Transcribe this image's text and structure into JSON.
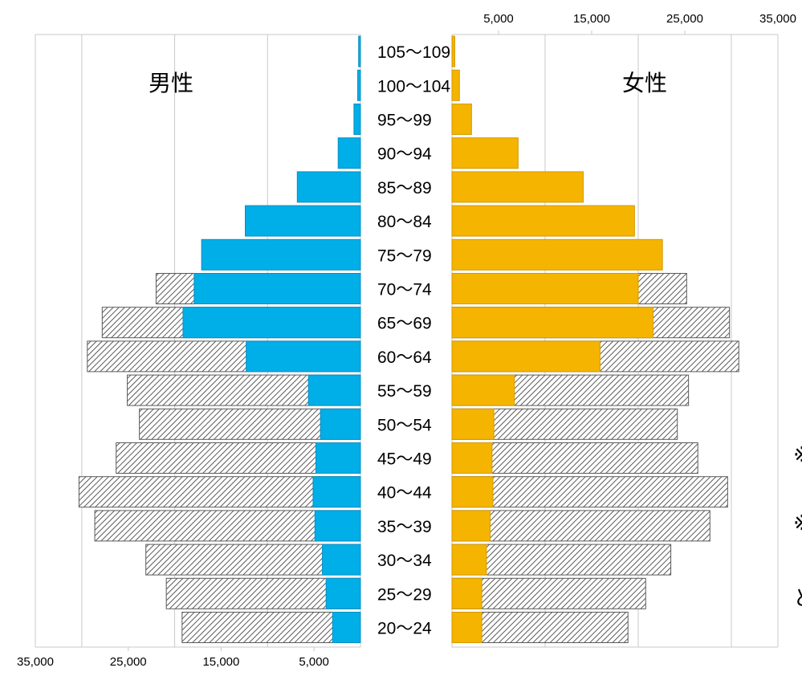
{
  "colors": {
    "male": "#00aee8",
    "male_edge": "#0a8fc0",
    "female": "#f5b400",
    "female_edge": "#d49a00",
    "hatch_fill": "#ffffff",
    "hatch_line": "#5a5a5a",
    "grid": "#c8c8c8"
  },
  "chart_data": {
    "type": "bar",
    "orientation": "horizontal",
    "layout": "population-pyramid",
    "panel_labels": {
      "left": "男性",
      "right": "女性"
    },
    "categories": [
      "105〜109",
      "100〜104",
      "95〜99",
      "90〜94",
      "85〜89",
      "80〜84",
      "75〜79",
      "70〜74",
      "65〜69",
      "60〜64",
      "55〜59",
      "50〜54",
      "45〜49",
      "40〜44",
      "35〜39",
      "30〜34",
      "25〜29",
      "20〜24"
    ],
    "series": [
      {
        "side": "left",
        "style": "hatched",
        "values": [
          0,
          0,
          0,
          0,
          0,
          0,
          0,
          22000,
          27800,
          29400,
          25100,
          23800,
          26300,
          30300,
          28600,
          23100,
          20900,
          19200
        ]
      },
      {
        "name": "男性",
        "side": "left",
        "style": "solid",
        "values": [
          200,
          300,
          700,
          2400,
          6800,
          12400,
          17100,
          17900,
          19100,
          12300,
          5600,
          4300,
          4800,
          5100,
          4900,
          4100,
          3700,
          3000
        ]
      },
      {
        "side": "right",
        "style": "hatched",
        "values": [
          0,
          0,
          0,
          0,
          0,
          0,
          0,
          25200,
          29800,
          30800,
          25400,
          24200,
          26400,
          29600,
          27700,
          23500,
          20800,
          18900
        ]
      },
      {
        "name": "女性",
        "side": "right",
        "style": "solid",
        "values": [
          300,
          800,
          2100,
          7100,
          14100,
          19600,
          22600,
          20000,
          21600,
          15900,
          6700,
          4500,
          4300,
          4400,
          4100,
          3700,
          3200,
          3200
        ]
      }
    ],
    "axes": {
      "left": {
        "range": [
          0,
          35000
        ],
        "tick_labels": [
          "35,000",
          "25,000",
          "15,000",
          "5,000"
        ],
        "tick_values": [
          35000,
          25000,
          15000,
          5000
        ],
        "reversed": true,
        "label_position": "bottom"
      },
      "right": {
        "range": [
          0,
          35000
        ],
        "tick_labels": [
          "5,000",
          "15,000",
          "25,000",
          "35,000"
        ],
        "tick_values": [
          5000,
          15000,
          25000,
          35000
        ],
        "label_position": "top"
      }
    },
    "grid": true
  },
  "side_text": [
    "※",
    "（",
    "※",
    "（",
    "と"
  ]
}
